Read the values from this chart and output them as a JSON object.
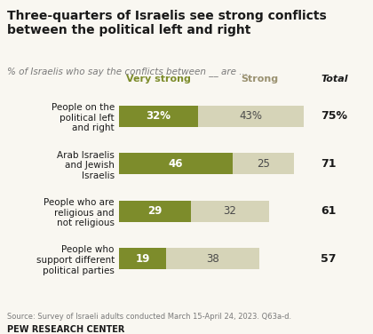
{
  "title": "Three-quarters of Israelis see strong conflicts\nbetween the political left and right",
  "subtitle": "% of Israelis who say the conflicts between __ are ...",
  "categories": [
    "People on the\npolitical left\nand right",
    "Arab Israelis\nand Jewish\nIsraelis",
    "People who are\nreligious and\nnot religious",
    "People who\nsupport different\npolitical parties"
  ],
  "very_strong": [
    32,
    46,
    29,
    19
  ],
  "strong": [
    43,
    25,
    32,
    38
  ],
  "totals": [
    "75%",
    "71",
    "61",
    "57"
  ],
  "very_strong_labels": [
    "32%",
    "46",
    "29",
    "19"
  ],
  "strong_labels": [
    "43%",
    "25",
    "32",
    "38"
  ],
  "color_very_strong": "#7d8c2b",
  "color_strong": "#d6d4b8",
  "legend_very_strong": "Very strong",
  "legend_strong": "Strong",
  "source": "Source: Survey of Israeli adults conducted March 15-April 24, 2023. Q63a-d.",
  "footer": "PEW RESEARCH CENTER",
  "background_color": "#f9f7f1",
  "title_color": "#1a1a1a",
  "subtitle_color": "#7a7a7a",
  "total_color": "#1a1a1a",
  "bar_height": 0.45
}
